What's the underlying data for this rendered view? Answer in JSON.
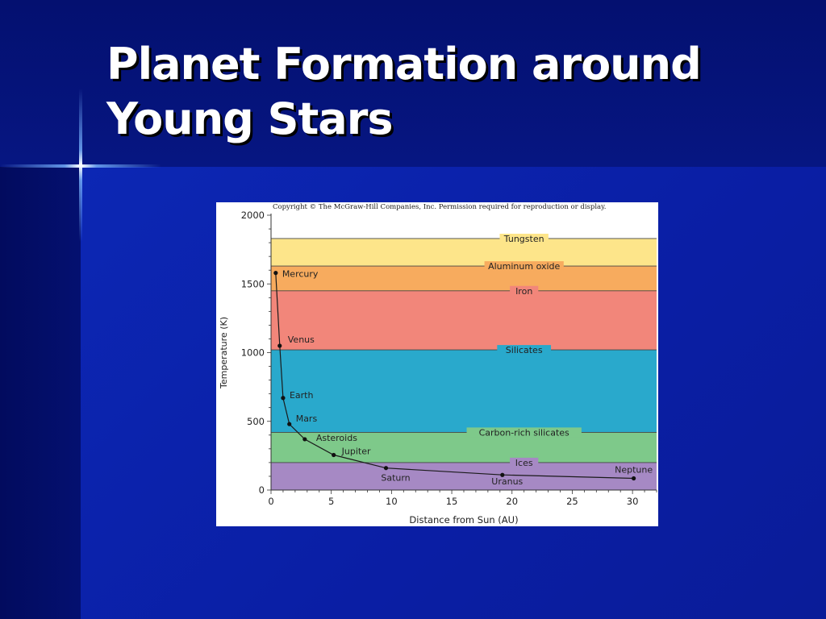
{
  "slide": {
    "title_lines": [
      "Planet Formation around",
      "Young Stars"
    ]
  },
  "figure": {
    "copyright": "Copyright © The McGraw-Hill Companies, Inc. Permission required for reproduction or display."
  },
  "chart_data": {
    "type": "line",
    "xlabel": "Distance from Sun (AU)",
    "ylabel": "Temperature (K)",
    "xlim": [
      0,
      32
    ],
    "ylim": [
      0,
      2000
    ],
    "xticks": [
      0,
      5,
      10,
      15,
      20,
      25,
      30
    ],
    "yticks": [
      0,
      500,
      1000,
      1500,
      2000
    ],
    "grid": false,
    "condensation_lines": [
      {
        "name": "Tungsten",
        "temperature": 1830,
        "label_x": 21
      },
      {
        "name": "Aluminum oxide",
        "temperature": 1630,
        "label_x": 21
      },
      {
        "name": "Iron",
        "temperature": 1450,
        "label_x": 21
      },
      {
        "name": "Silicates",
        "temperature": 1020,
        "label_x": 21
      },
      {
        "name": "Carbon-rich silicates",
        "temperature": 420,
        "label_x": 21
      },
      {
        "name": "Ices",
        "temperature": 200,
        "label_x": 21
      }
    ],
    "bands": [
      {
        "from": 1630,
        "to": 1830,
        "color": "#fde58a"
      },
      {
        "from": 1450,
        "to": 1630,
        "color": "#f7ab5e"
      },
      {
        "from": 1020,
        "to": 1450,
        "color": "#f2867a"
      },
      {
        "from": 420,
        "to": 1020,
        "color": "#29a9cc"
      },
      {
        "from": 200,
        "to": 420,
        "color": "#7ec98a"
      },
      {
        "from": 0,
        "to": 200,
        "color": "#a689c4"
      }
    ],
    "points": [
      {
        "name": "Mercury",
        "x": 0.39,
        "y": 1580
      },
      {
        "name": "Venus",
        "x": 0.72,
        "y": 1050
      },
      {
        "name": "Earth",
        "x": 1.0,
        "y": 670
      },
      {
        "name": "Mars",
        "x": 1.52,
        "y": 480
      },
      {
        "name": "Asteroids",
        "x": 2.8,
        "y": 370
      },
      {
        "name": "Jupiter",
        "x": 5.2,
        "y": 255
      },
      {
        "name": "Saturn",
        "x": 9.54,
        "y": 160
      },
      {
        "name": "Uranus",
        "x": 19.2,
        "y": 110
      },
      {
        "name": "Neptune",
        "x": 30.1,
        "y": 85
      }
    ]
  }
}
